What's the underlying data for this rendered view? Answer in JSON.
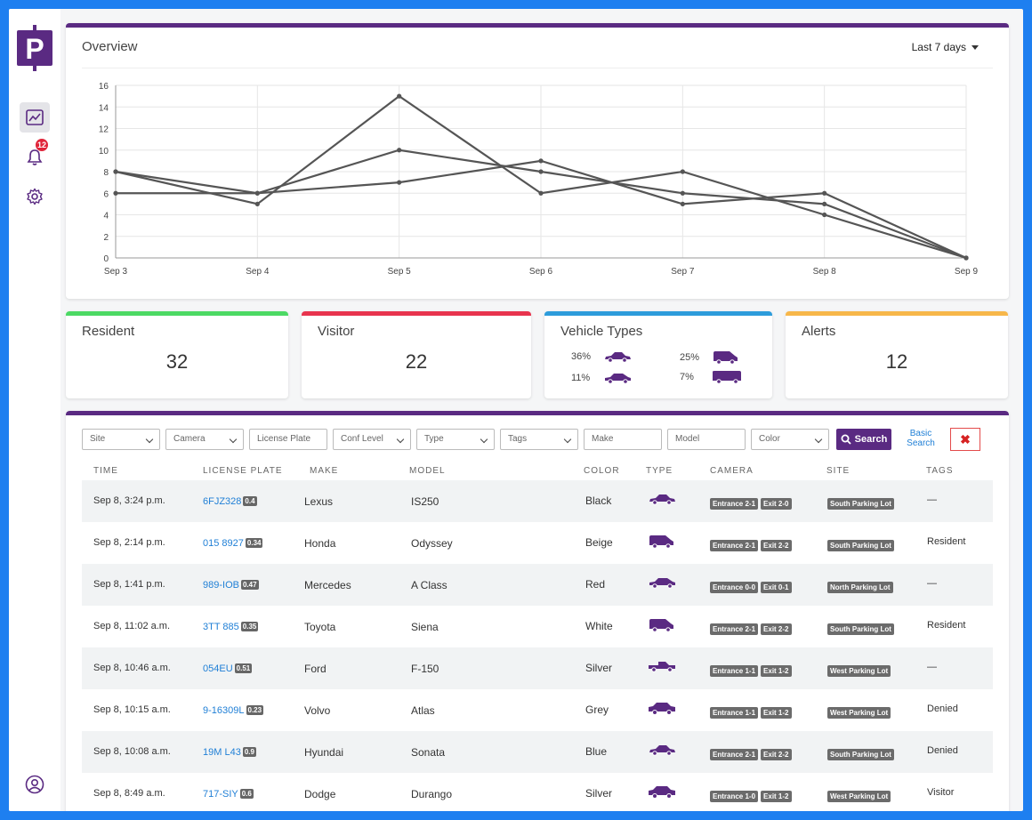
{
  "sidebar": {
    "logo_letter": "P",
    "notification_count": "12",
    "items": [
      {
        "name": "dashboard",
        "active": true
      },
      {
        "name": "notifications",
        "active": false
      },
      {
        "name": "settings",
        "active": false
      }
    ]
  },
  "overview": {
    "title": "Overview",
    "range": "Last 7 days"
  },
  "chart_data": {
    "type": "line",
    "x": [
      "Sep 3",
      "Sep 4",
      "Sep 5",
      "Sep 6",
      "Sep 7",
      "Sep 8",
      "Sep 9"
    ],
    "ylim": [
      0,
      16
    ],
    "yticks": [
      0,
      2,
      4,
      6,
      8,
      10,
      12,
      14,
      16
    ],
    "grid": true,
    "series": [
      {
        "values": [
          8,
          5,
          15,
          6,
          8,
          4,
          0
        ]
      },
      {
        "values": [
          6,
          6,
          7,
          9,
          5,
          6,
          0
        ]
      },
      {
        "values": [
          8,
          6,
          10,
          8,
          6,
          5,
          0
        ]
      }
    ],
    "line_color": "#555555"
  },
  "stats": {
    "resident": {
      "label": "Resident",
      "value": "32",
      "color": "#4cd964"
    },
    "visitor": {
      "label": "Visitor",
      "value": "22",
      "color": "#e8344e"
    },
    "vehicle_types": {
      "label": "Vehicle Types",
      "color": "#2d9cdb",
      "items": [
        {
          "pct": "36%",
          "icon": "sedan-icon"
        },
        {
          "pct": "25%",
          "icon": "van-icon"
        },
        {
          "pct": "11%",
          "icon": "hatchback-icon"
        },
        {
          "pct": "7%",
          "icon": "truck-icon"
        }
      ]
    },
    "alerts": {
      "label": "Alerts",
      "value": "12",
      "color": "#f7b74a"
    }
  },
  "filters": {
    "site": "Site",
    "camera": "Camera",
    "license_plate": "License Plate",
    "conf_level": "Conf Level",
    "type": "Type",
    "tags": "Tags",
    "make": "Make",
    "model": "Model",
    "color": "Color",
    "search": "Search",
    "basic_search": "Basic Search"
  },
  "table": {
    "headers": [
      "TIME",
      "LICENSE PLATE",
      "MAKE",
      "MODEL",
      "COLOR",
      "TYPE",
      "CAMERA",
      "SITE",
      "TAGS"
    ],
    "rows": [
      {
        "time": "Sep 8, 3:24 p.m.",
        "plate": "6FJZ328",
        "conf": "0.4",
        "make": "Lexus",
        "model": "IS250",
        "color": "Black",
        "type": "sedan",
        "cameras": [
          "Entrance 2-1",
          "Exit 2-0"
        ],
        "site": "South Parking Lot",
        "tags": "—"
      },
      {
        "time": "Sep 8, 2:14 p.m.",
        "plate": "015 8927",
        "conf": "0.34",
        "make": "Honda",
        "model": "Odyssey",
        "color": "Beige",
        "type": "van",
        "cameras": [
          "Entrance 2-1",
          "Exit 2-2"
        ],
        "site": "South Parking Lot",
        "tags": "Resident"
      },
      {
        "time": "Sep 8, 1:41 p.m.",
        "plate": "989-IOB",
        "conf": "0.47",
        "make": "Mercedes",
        "model": "A Class",
        "color": "Red",
        "type": "hatchback",
        "cameras": [
          "Entrance 0-0",
          "Exit 0-1"
        ],
        "site": "North Parking Lot",
        "tags": "—"
      },
      {
        "time": "Sep 8, 11:02 a.m.",
        "plate": "3TT 885",
        "conf": "0.35",
        "make": "Toyota",
        "model": "Siena",
        "color": "White",
        "type": "van",
        "cameras": [
          "Entrance 2-1",
          "Exit 2-2"
        ],
        "site": "South Parking Lot",
        "tags": "Resident"
      },
      {
        "time": "Sep 8, 10:46 a.m.",
        "plate": "054EU",
        "conf": "0.51",
        "make": "Ford",
        "model": "F-150",
        "color": "Silver",
        "type": "truck",
        "cameras": [
          "Entrance 1-1",
          "Exit 1-2"
        ],
        "site": "West Parking Lot",
        "tags": "—"
      },
      {
        "time": "Sep 8, 10:15 a.m.",
        "plate": "9-16309L",
        "conf": "0.23",
        "make": "Volvo",
        "model": "Atlas",
        "color": "Grey",
        "type": "suv",
        "cameras": [
          "Entrance 1-1",
          "Exit 1-2"
        ],
        "site": "West Parking Lot",
        "tags": "Denied"
      },
      {
        "time": "Sep 8, 10:08 a.m.",
        "plate": "19M L43",
        "conf": "0.9",
        "make": "Hyundai",
        "model": "Sonata",
        "color": "Blue",
        "type": "sedan",
        "cameras": [
          "Entrance 2-1",
          "Exit 2-2"
        ],
        "site": "South Parking Lot",
        "tags": "Denied"
      },
      {
        "time": "Sep 8, 8:49 a.m.",
        "plate": "717-SIY",
        "conf": "0.6",
        "make": "Dodge",
        "model": "Durango",
        "color": "Silver",
        "type": "suv",
        "cameras": [
          "Entrance 1-0",
          "Exit 1-2"
        ],
        "site": "West Parking Lot",
        "tags": "Visitor"
      }
    ]
  }
}
